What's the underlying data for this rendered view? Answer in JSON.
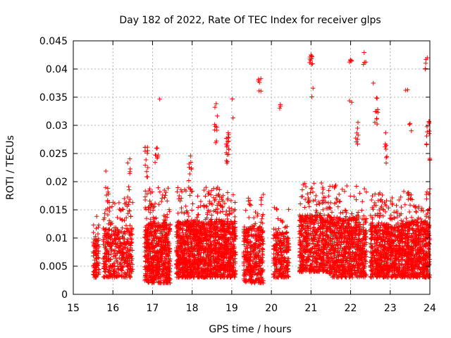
{
  "chart_data": {
    "type": "scatter",
    "title": "Day 182 of 2022, Rate Of TEC Index for receiver glps",
    "xlabel": "GPS time / hours",
    "ylabel": "ROTI / TECUs",
    "xlim": [
      15,
      24
    ],
    "ylim": [
      0,
      0.045
    ],
    "x_ticks": [
      "15",
      "16",
      "17",
      "18",
      "19",
      "20",
      "21",
      "22",
      "23",
      "24"
    ],
    "y_ticks": [
      "0",
      "0.005",
      "0.01",
      "0.015",
      "0.02",
      "0.025",
      "0.03",
      "0.035",
      "0.04",
      "0.045"
    ],
    "grid": true,
    "marker": "+",
    "color": "#ff0000",
    "series": [
      {
        "name": "ROTI",
        "clusters": [
          {
            "x_start": 15.5,
            "x_end": 15.65,
            "y_low": 0.003,
            "y_high": 0.014,
            "count": 90
          },
          {
            "x_start": 15.75,
            "x_end": 16.5,
            "y_low": 0.003,
            "y_high": 0.017,
            "count": 420
          },
          {
            "x_start": 16.8,
            "x_end": 17.45,
            "y_low": 0.002,
            "y_high": 0.019,
            "count": 650
          },
          {
            "x_start": 17.6,
            "x_end": 18.45,
            "y_low": 0.003,
            "y_high": 0.019,
            "count": 850
          },
          {
            "x_start": 18.45,
            "x_end": 19.1,
            "y_low": 0.003,
            "y_high": 0.019,
            "count": 650
          },
          {
            "x_start": 19.3,
            "x_end": 19.8,
            "y_low": 0.002,
            "y_high": 0.018,
            "count": 380
          },
          {
            "x_start": 20.05,
            "x_end": 20.45,
            "y_low": 0.003,
            "y_high": 0.016,
            "count": 260
          },
          {
            "x_start": 20.7,
            "x_end": 21.45,
            "y_low": 0.004,
            "y_high": 0.02,
            "count": 600
          },
          {
            "x_start": 21.45,
            "x_end": 22.4,
            "y_low": 0.003,
            "y_high": 0.02,
            "count": 800
          },
          {
            "x_start": 22.5,
            "x_end": 23.3,
            "y_low": 0.003,
            "y_high": 0.018,
            "count": 700
          },
          {
            "x_start": 23.3,
            "x_end": 24.0,
            "y_low": 0.003,
            "y_high": 0.019,
            "count": 650
          }
        ],
        "spikes": [
          {
            "x": 15.85,
            "y_low": 0.015,
            "y_high": 0.022,
            "count": 10
          },
          {
            "x": 16.4,
            "y_low": 0.016,
            "y_high": 0.025,
            "count": 8
          },
          {
            "x": 16.85,
            "y_low": 0.02,
            "y_high": 0.027,
            "count": 12
          },
          {
            "x": 17.1,
            "y_low": 0.022,
            "y_high": 0.026,
            "count": 8
          },
          {
            "x": 17.15,
            "y_low": 0.0345,
            "y_high": 0.0355,
            "count": 1
          },
          {
            "x": 17.95,
            "y_low": 0.018,
            "y_high": 0.025,
            "count": 12
          },
          {
            "x": 18.6,
            "y_low": 0.026,
            "y_high": 0.034,
            "count": 10
          },
          {
            "x": 18.9,
            "y_low": 0.022,
            "y_high": 0.03,
            "count": 18
          },
          {
            "x": 19.05,
            "y_low": 0.031,
            "y_high": 0.0365,
            "count": 2
          },
          {
            "x": 19.7,
            "y_low": 0.036,
            "y_high": 0.0385,
            "count": 6
          },
          {
            "x": 20.25,
            "y_low": 0.033,
            "y_high": 0.034,
            "count": 3
          },
          {
            "x": 21.0,
            "y_low": 0.04,
            "y_high": 0.043,
            "count": 10
          },
          {
            "x": 21.05,
            "y_low": 0.035,
            "y_high": 0.037,
            "count": 2
          },
          {
            "x": 22.0,
            "y_low": 0.041,
            "y_high": 0.0418,
            "count": 5
          },
          {
            "x": 22.0,
            "y_low": 0.033,
            "y_high": 0.035,
            "count": 2
          },
          {
            "x": 22.35,
            "y_low": 0.04,
            "y_high": 0.0437,
            "count": 4
          },
          {
            "x": 22.15,
            "y_low": 0.026,
            "y_high": 0.031,
            "count": 8
          },
          {
            "x": 22.65,
            "y_low": 0.03,
            "y_high": 0.035,
            "count": 10
          },
          {
            "x": 22.6,
            "y_low": 0.037,
            "y_high": 0.0375,
            "count": 1
          },
          {
            "x": 22.9,
            "y_low": 0.022,
            "y_high": 0.029,
            "count": 8
          },
          {
            "x": 23.4,
            "y_low": 0.034,
            "y_high": 0.0365,
            "count": 2
          },
          {
            "x": 23.5,
            "y_low": 0.028,
            "y_high": 0.031,
            "count": 3
          },
          {
            "x": 23.9,
            "y_low": 0.039,
            "y_high": 0.0425,
            "count": 5
          },
          {
            "x": 23.95,
            "y_low": 0.026,
            "y_high": 0.032,
            "count": 10
          },
          {
            "x": 24.0,
            "y_low": 0.023,
            "y_high": 0.025,
            "count": 3
          }
        ]
      }
    ]
  }
}
